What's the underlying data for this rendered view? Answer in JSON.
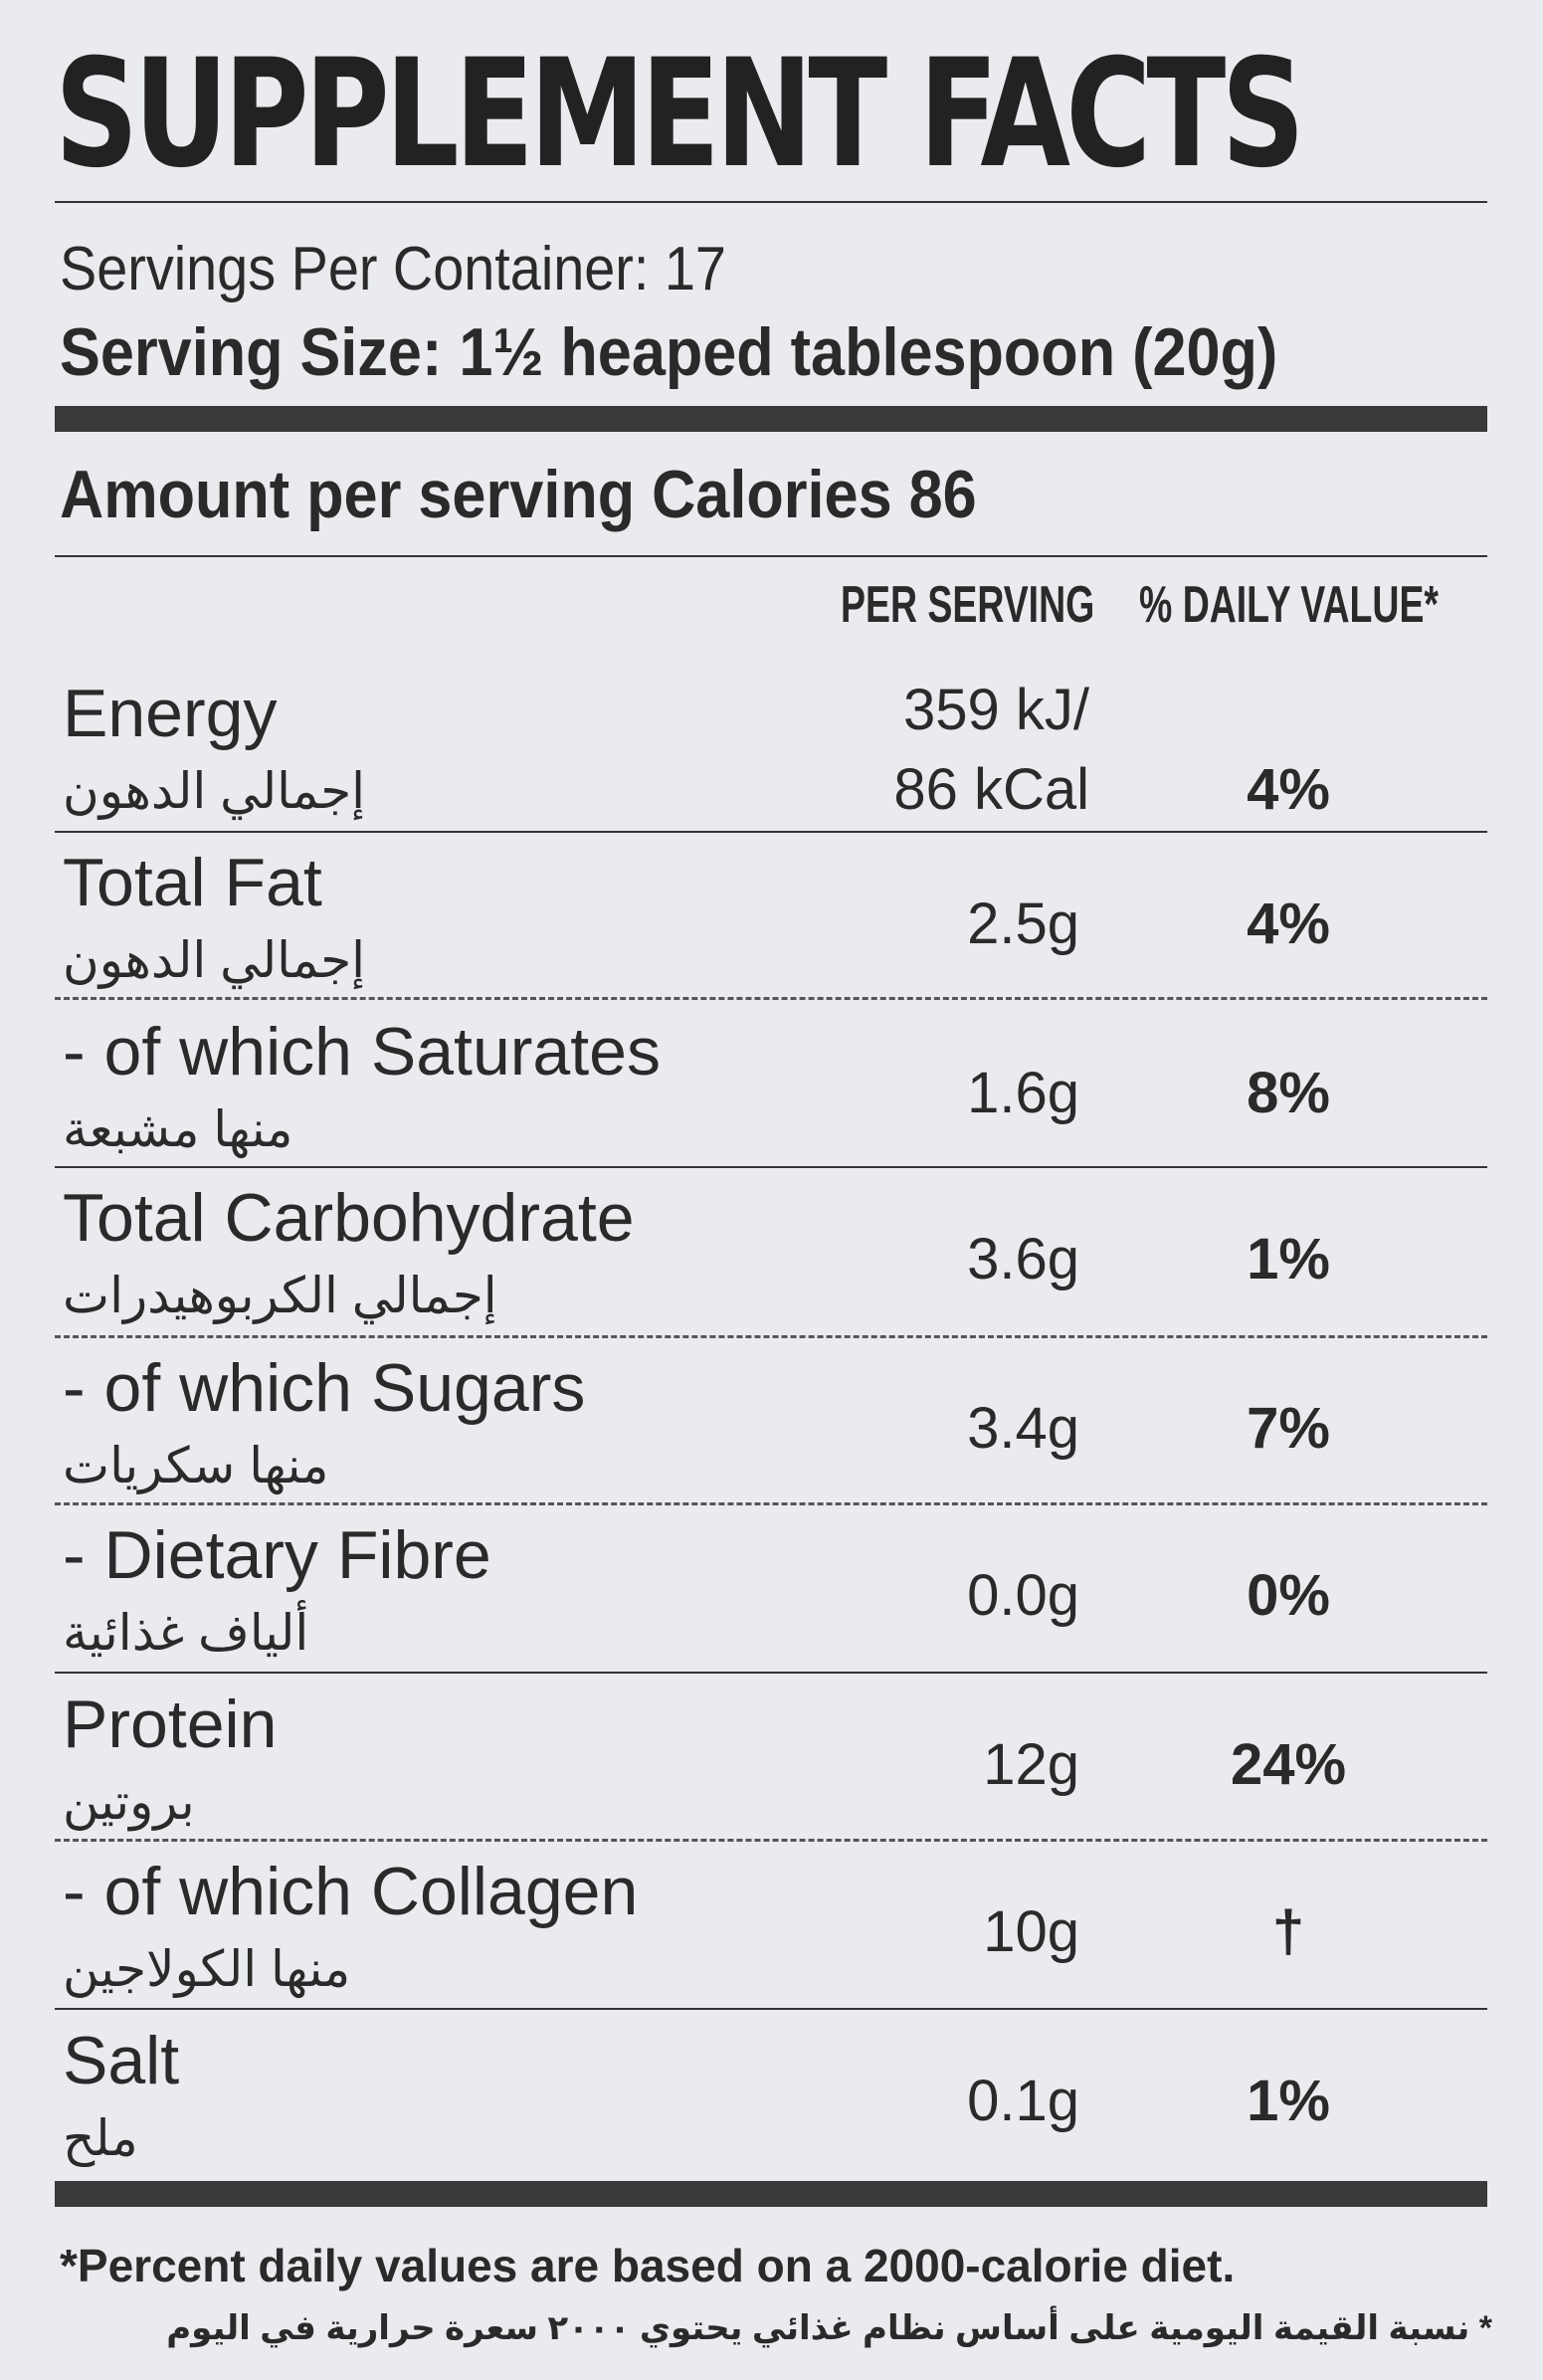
{
  "title": "SUPPLEMENT FACTS",
  "servings_per_container": "Servings Per Container: 17",
  "serving_size": "Serving Size: 1½ heaped tablespoon (20g)",
  "amount_line": "Amount per serving Calories 86",
  "columns": {
    "per_serving": "PER SERVING",
    "daily_value": "% DAILY VALUE*"
  },
  "rows": [
    {
      "en": "Energy",
      "ar": "إجمالي الدهون",
      "val1": "359 kJ/",
      "val2": "86 kCal",
      "dv": "4%"
    },
    {
      "en": "Total Fat",
      "ar": "إجمالي الدهون",
      "val": "2.5g",
      "dv": "4%"
    },
    {
      "en": "- of which Saturates",
      "ar": "منها مشبعة",
      "val": "1.6g",
      "dv": "8%"
    },
    {
      "en": "Total Carbohydrate",
      "ar": "إجمالي الكربوهيدرات",
      "val": "3.6g",
      "dv": "1%"
    },
    {
      "en": "- of which Sugars",
      "ar": "منها سكريات",
      "val": "3.4g",
      "dv": "7%"
    },
    {
      "en": "- Dietary Fibre",
      "ar": "ألياف غذائية",
      "val": "0.0g",
      "dv": "0%"
    },
    {
      "en": "Protein",
      "ar": "بروتين",
      "val": "12g",
      "dv": "24%"
    },
    {
      "en": "- of which Collagen",
      "ar": "منها الكولاجين",
      "val": "10g",
      "dv": "†"
    },
    {
      "en": "Salt",
      "ar": "ملح",
      "val": "0.1g",
      "dv": "1%"
    }
  ],
  "footnote_en": "*Percent daily values are based on a 2000-calorie diet.",
  "footnote_ar": "* نسبة القيمة اليومية على أساس نظام غذائي يحتوي ٢٠٠٠ سعرة حرارية في اليوم"
}
